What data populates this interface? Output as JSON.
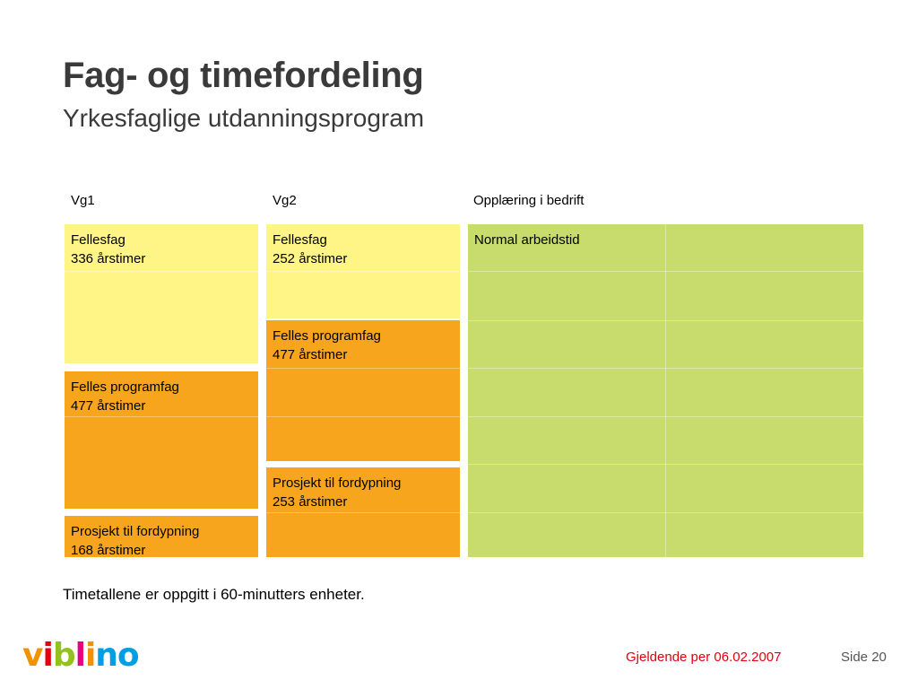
{
  "slide": {
    "title": "Fag- og timefordeling",
    "subtitle": "Yrkesfaglige utdanningsprogram"
  },
  "columns": [
    "Vg1",
    "Vg2",
    "Opplæring i bedrift"
  ],
  "vg1": [
    {
      "name": "Fellesfag",
      "hours": "336 årstimer"
    },
    {
      "name": "Felles programfag",
      "hours": "477 årstimer"
    },
    {
      "name": "Prosjekt til fordypning",
      "hours": "168 årstimer"
    }
  ],
  "vg2": [
    {
      "name": "Fellesfag",
      "hours": "252 årstimer"
    },
    {
      "name": "Felles programfag",
      "hours": "477 årstimer"
    },
    {
      "name": "Prosjekt til fordypning",
      "hours": "253 årstimer"
    }
  ],
  "bedrift": {
    "label": "Normal arbeidstid"
  },
  "note": "Timetallene er oppgitt i 60-minutters enheter.",
  "footer": {
    "date": "Gjeldende per 06.02.2007",
    "page": "Side 20"
  },
  "logo": {
    "letters": [
      "v",
      "i",
      "b",
      "l",
      "i",
      "n",
      "o"
    ],
    "colors": [
      "#f39200",
      "#e3000f",
      "#95c11f",
      "#e6007e",
      "#f39200",
      "#009fe3",
      "#009fe3"
    ]
  },
  "colors": {
    "fellesfag": "#fff587",
    "programfag": "#f7a51c",
    "bedrift": "#c8dc6e",
    "footer_date": "#e3000f"
  }
}
